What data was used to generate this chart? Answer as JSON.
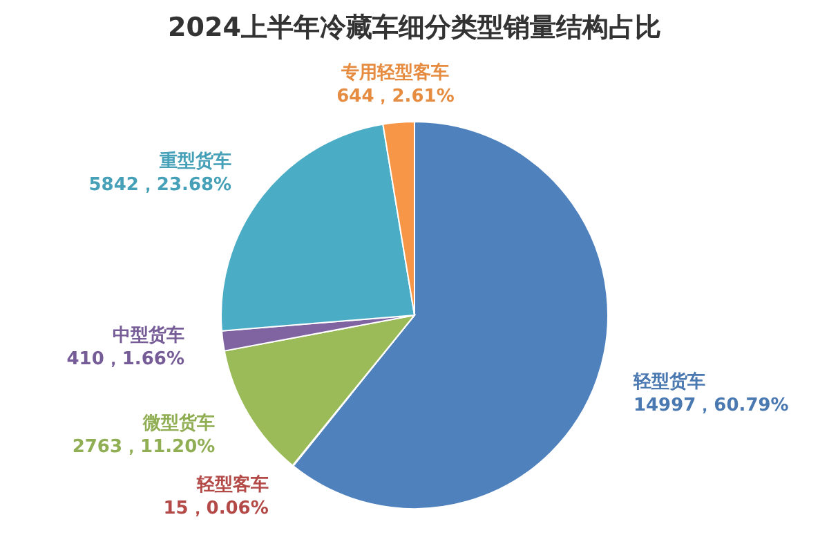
{
  "chart_data": {
    "type": "pie",
    "title": "2024上半年冷藏车细分类型销量结构占比",
    "categories": [
      "轻型货车",
      "轻型客车",
      "微型货车",
      "中型货车",
      "重型货车",
      "专用轻型客车"
    ],
    "values": [
      14997,
      15,
      2763,
      410,
      5842,
      644
    ],
    "value_labels": [
      "14997，60.79%",
      "15，0.06%",
      "2763，11.20%",
      "410，1.66%",
      "5842，23.68%",
      "644，2.61%"
    ],
    "colors": [
      "#4f81bd",
      "#c0504d",
      "#9bbb59",
      "#8064a2",
      "#4bacc6",
      "#f79646"
    ]
  }
}
